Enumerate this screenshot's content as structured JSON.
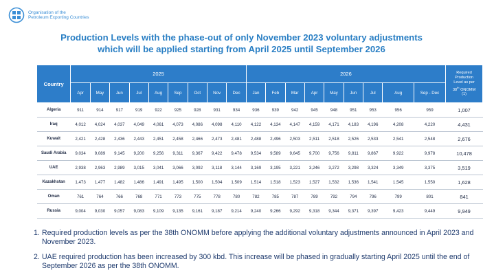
{
  "org": {
    "name_line1": "Organisation of the",
    "name_line2": "Petroleum Exporting Countries"
  },
  "title": {
    "line1": "Production Levels with the phase-out of only November 2023 voluntary adjustments",
    "line2": "which will be applied starting from April 2025 until September 2026"
  },
  "table": {
    "country_header": "Country",
    "year_2025": "2025",
    "year_2026": "2026",
    "required_header": {
      "line1": "Required",
      "line2": "Production",
      "line3": "Level as per",
      "line4_sup": "38",
      "line4_sup_suffix": "th",
      "line4_rest": "ONOMM",
      "line5": "(1)"
    },
    "months_2025": [
      "Apr",
      "May",
      "Jun",
      "Jul",
      "Aug",
      "Sep",
      "Oct",
      "Nov",
      "Dec"
    ],
    "months_2026": [
      "Jan",
      "Feb",
      "Mar",
      "Apr",
      "May",
      "Jun",
      "Jul",
      "Aug",
      "Sep - Dec"
    ],
    "rows": [
      {
        "country": "Algeria",
        "values": [
          "911",
          "914",
          "917",
          "919",
          "922",
          "925",
          "928",
          "931",
          "934",
          "936",
          "939",
          "942",
          "945",
          "948",
          "951",
          "953",
          "956",
          "959"
        ],
        "required": "1,007"
      },
      {
        "country": "Iraq",
        "values": [
          "4,012",
          "4,024",
          "4,037",
          "4,049",
          "4,061",
          "4,073",
          "4,086",
          "4,098",
          "4,110",
          "4,122",
          "4,134",
          "4,147",
          "4,159",
          "4,171",
          "4,183",
          "4,196",
          "4,208",
          "4,220"
        ],
        "required": "4,431"
      },
      {
        "country": "Kuwait",
        "values": [
          "2,421",
          "2,428",
          "2,436",
          "2,443",
          "2,451",
          "2,458",
          "2,466",
          "2,473",
          "2,481",
          "2,488",
          "2,496",
          "2,503",
          "2,511",
          "2,518",
          "2,526",
          "2,533",
          "2,541",
          "2,548"
        ],
        "required": "2,676"
      },
      {
        "country": "Saudi Arabia",
        "values": [
          "9,034",
          "9,089",
          "9,145",
          "9,200",
          "9,256",
          "9,311",
          "9,367",
          "9,422",
          "9,478",
          "9,534",
          "9,589",
          "9,645",
          "9,700",
          "9,756",
          "9,811",
          "9,867",
          "9,922",
          "9,978"
        ],
        "required": "10,478"
      },
      {
        "country": "UAE",
        "values": [
          "2,938",
          "2,963",
          "2,989",
          "3,015",
          "3,041",
          "3,066",
          "3,092",
          "3,118",
          "3,144",
          "3,169",
          "3,195",
          "3,221",
          "3,246",
          "3,272",
          "3,298",
          "3,324",
          "3,349",
          "3,375"
        ],
        "required": "3,519"
      },
      {
        "country": "Kazakhstan",
        "values": [
          "1,473",
          "1,477",
          "1,482",
          "1,486",
          "1,491",
          "1,495",
          "1,500",
          "1,504",
          "1,509",
          "1,514",
          "1,518",
          "1,523",
          "1,527",
          "1,532",
          "1,536",
          "1,541",
          "1,545",
          "1,550"
        ],
        "required": "1,628"
      },
      {
        "country": "Oman",
        "values": [
          "761",
          "764",
          "766",
          "768",
          "771",
          "773",
          "775",
          "778",
          "780",
          "782",
          "785",
          "787",
          "789",
          "792",
          "794",
          "796",
          "799",
          "801"
        ],
        "required": "841"
      },
      {
        "country": "Russia",
        "values": [
          "9,004",
          "9,030",
          "9,057",
          "9,083",
          "9,109",
          "9,135",
          "9,161",
          "9,187",
          "9,214",
          "9,240",
          "9,266",
          "9,292",
          "9,318",
          "9,344",
          "9,371",
          "9,397",
          "9,423",
          "9,449"
        ],
        "required": "9,949"
      }
    ]
  },
  "notes": [
    {
      "num": "1.",
      "text": "Required production levels as per the 38th ONOMM before applying the additional voluntary adjustments announced in April 2023 and November 2023."
    },
    {
      "num": "2.",
      "text": "UAE required production has been increased by 300 kbd. This increase will be phased in gradually starting April 2025 until the end of September 2026 as per the 38th ONOMM."
    }
  ],
  "colors": {
    "header_bg": "#2d7dc9",
    "title": "#2a7fc4",
    "logo": "#3a8ed6",
    "row_divider": "#b9c3d0"
  }
}
